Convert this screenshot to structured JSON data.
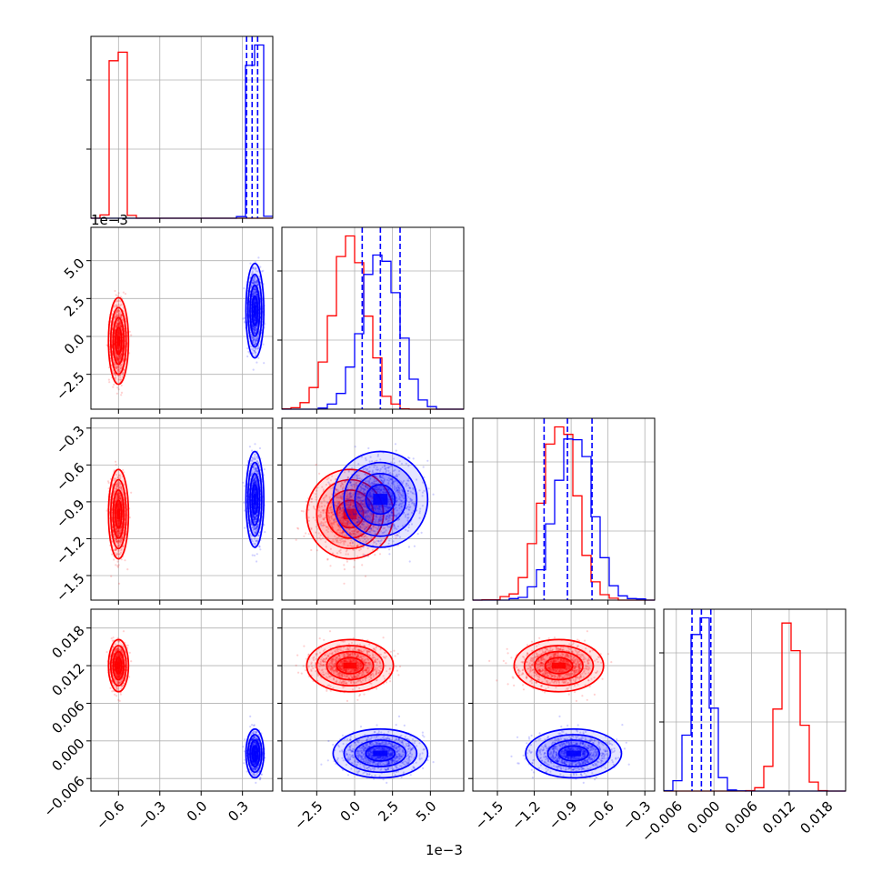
{
  "chart_data": {
    "type": "corner",
    "series": [
      {
        "name": "",
        "color": "#ff0000",
        "p1": {
          "mean": -0.6,
          "sd": 0.028
        },
        "p2": {
          "mean": -0.0003,
          "sd": 0.0011
        },
        "p3": {
          "mean": -1.0,
          "sd": 0.14
        },
        "p4": {
          "mean": 0.012,
          "sd": 0.0016
        }
      },
      {
        "name": "",
        "color": "#0000ff",
        "p1": {
          "mean": 0.39,
          "sd": 0.025
        },
        "p2": {
          "mean": 0.0017,
          "sd": 0.0012
        },
        "p3": {
          "mean": -0.88,
          "sd": 0.15
        },
        "p4": {
          "mean": -0.002,
          "sd": 0.0015
        }
      }
    ],
    "quantiles": {
      "color": "#0000ff",
      "p1": [
        0.33,
        0.37,
        0.41
      ],
      "p2": [
        0.0005,
        0.0017,
        0.003
      ],
      "p3": [
        -1.12,
        -0.93,
        -0.73
      ],
      "p4": [
        -0.0035,
        -0.002,
        -0.0005
      ]
    },
    "ranges": {
      "p1": [
        -0.8,
        0.52
      ],
      "p2": [
        -0.0048,
        0.0072
      ],
      "p3": [
        -1.7,
        -0.22
      ],
      "p4": [
        -0.008,
        0.021
      ]
    },
    "ticks": {
      "p1": {
        "values": [
          -0.6,
          -0.3,
          0.0,
          0.3
        ],
        "labels": [
          "−0.6",
          "−0.3",
          "0.0",
          "0.3"
        ]
      },
      "p2": {
        "values": [
          -0.0025,
          0.0,
          0.0025,
          0.005
        ],
        "labels": [
          "−2.5",
          "0.0",
          "2.5",
          "5.0"
        ]
      },
      "p3": {
        "values": [
          -1.5,
          -1.2,
          -0.9,
          -0.6,
          -0.3
        ],
        "labels": [
          "−1.5",
          "−1.2",
          "−0.9",
          "−0.6",
          "−0.3"
        ]
      },
      "p4": {
        "values": [
          -0.006,
          0.0,
          0.006,
          0.012,
          0.018
        ],
        "labels": [
          "−0.006",
          "0.000",
          "0.006",
          "0.012",
          "0.018"
        ]
      }
    },
    "scale_labels": {
      "p2": "1e−3"
    },
    "grid": true
  }
}
